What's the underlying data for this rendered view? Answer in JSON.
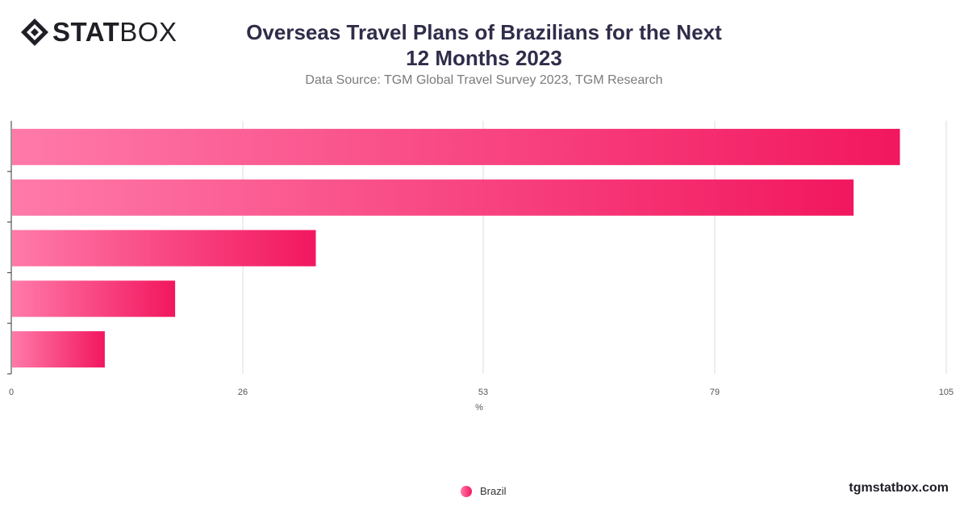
{
  "brand": {
    "logo_bold": "STAT",
    "logo_light": "BOX",
    "site": "tgmstatbox.com"
  },
  "colors": {
    "bar_start": "#ff7aa9",
    "bar_end": "#f2175f",
    "grid": "#dddddd",
    "axis": "#333333"
  },
  "chart_data": {
    "type": "bar",
    "orientation": "horizontal",
    "title": "Overseas Travel Plans of Brazilians for the Next 12 Months 2023",
    "subtitle": "Data Source: TGM Global Travel Survey 2023, TGM Research",
    "categories": [
      "",
      "",
      "",
      "",
      ""
    ],
    "series": [
      {
        "name": "Brazil",
        "values": [
          99.8,
          94.6,
          34.2,
          18.4,
          10.5
        ]
      }
    ],
    "xlabel": "%",
    "xlim": [
      0,
      105
    ],
    "xticks": [
      0,
      26,
      53,
      79,
      105
    ],
    "grid": true,
    "legend_position": "bottom"
  }
}
